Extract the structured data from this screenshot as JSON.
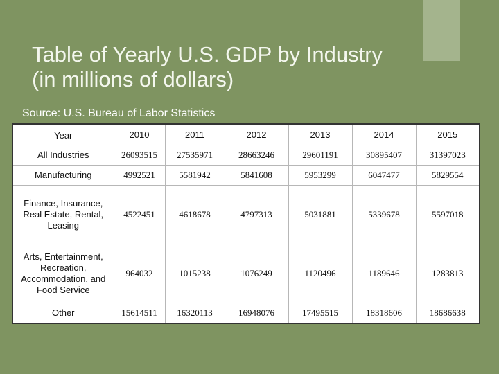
{
  "title": {
    "line1": "Table of Yearly U.S. GDP by Industry",
    "line2": "(in millions of dollars)"
  },
  "source": "Source: U.S. Bureau of Labor Statistics",
  "table": {
    "header": [
      "Year",
      "2010",
      "2011",
      "2012",
      "2013",
      "2014",
      "2015"
    ],
    "rows": [
      {
        "label": "All Industries",
        "values": [
          "26093515",
          "27535971",
          "28663246",
          "29601191",
          "30895407",
          "31397023"
        ]
      },
      {
        "label": "Manufacturing",
        "values": [
          "4992521",
          "5581942",
          "5841608",
          "5953299",
          "6047477",
          "5829554"
        ]
      },
      {
        "label": "Finance, Insurance, Real Estate, Rental, Leasing",
        "values": [
          "4522451",
          "4618678",
          "4797313",
          "5031881",
          "5339678",
          "5597018"
        ]
      },
      {
        "label": "Arts, Entertainment, Recreation, Accommodation, and Food Service",
        "values": [
          "964032",
          "1015238",
          "1076249",
          "1120496",
          "1189646",
          "1283813"
        ]
      },
      {
        "label": "Other",
        "values": [
          "15614511",
          "16320113",
          "16948076",
          "17495515",
          "18318606",
          "18686638"
        ]
      }
    ]
  },
  "colors": {
    "background": "#7f9461",
    "accent": "#a4b48d"
  }
}
